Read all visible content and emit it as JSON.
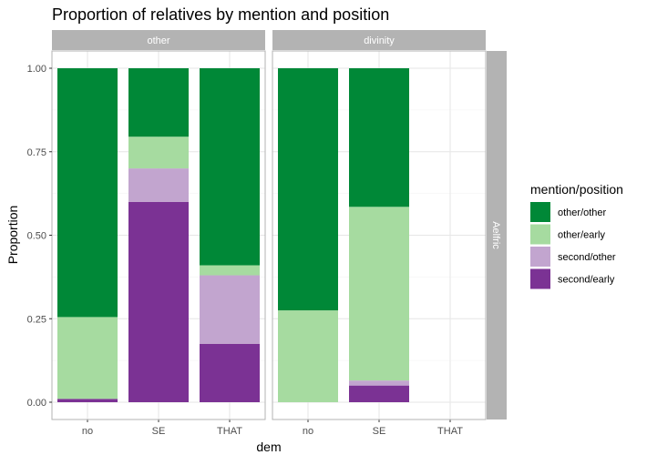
{
  "chart_data": {
    "type": "bar",
    "stacked": true,
    "title": "Proportion of relatives by mention and position",
    "xlabel": "dem",
    "ylabel": "Proportion",
    "ylim": [
      0,
      1
    ],
    "yticks": [
      "0.00",
      "0.25",
      "0.50",
      "0.75",
      "1.00"
    ],
    "grid": true,
    "categories": [
      "no",
      "SE",
      "THAT"
    ],
    "row_strip": "Aelfric",
    "legend": {
      "title": "mention/position",
      "placement": "right",
      "entries": [
        "other/other",
        "other/early",
        "second/other",
        "second/early"
      ]
    },
    "colors": {
      "other/other": "#008837",
      "other/early": "#a6dba0",
      "second/other": "#c2a5cf",
      "second/early": "#7b3294"
    },
    "panels": [
      {
        "label": "other",
        "series": [
          {
            "name": "second/early",
            "values": [
              0.01,
              0.6,
              0.175
            ]
          },
          {
            "name": "second/other",
            "values": [
              0.0,
              0.1,
              0.205
            ]
          },
          {
            "name": "other/early",
            "values": [
              0.245,
              0.095,
              0.03
            ]
          },
          {
            "name": "other/other",
            "values": [
              0.745,
              0.205,
              0.59
            ]
          }
        ]
      },
      {
        "label": "divinity",
        "series": [
          {
            "name": "second/early",
            "values": [
              0.0,
              0.05,
              0
            ]
          },
          {
            "name": "second/other",
            "values": [
              0.0,
              0.015,
              0
            ]
          },
          {
            "name": "other/early",
            "values": [
              0.275,
              0.52,
              0
            ]
          },
          {
            "name": "other/other",
            "values": [
              0.725,
              0.415,
              0
            ]
          }
        ]
      }
    ]
  }
}
